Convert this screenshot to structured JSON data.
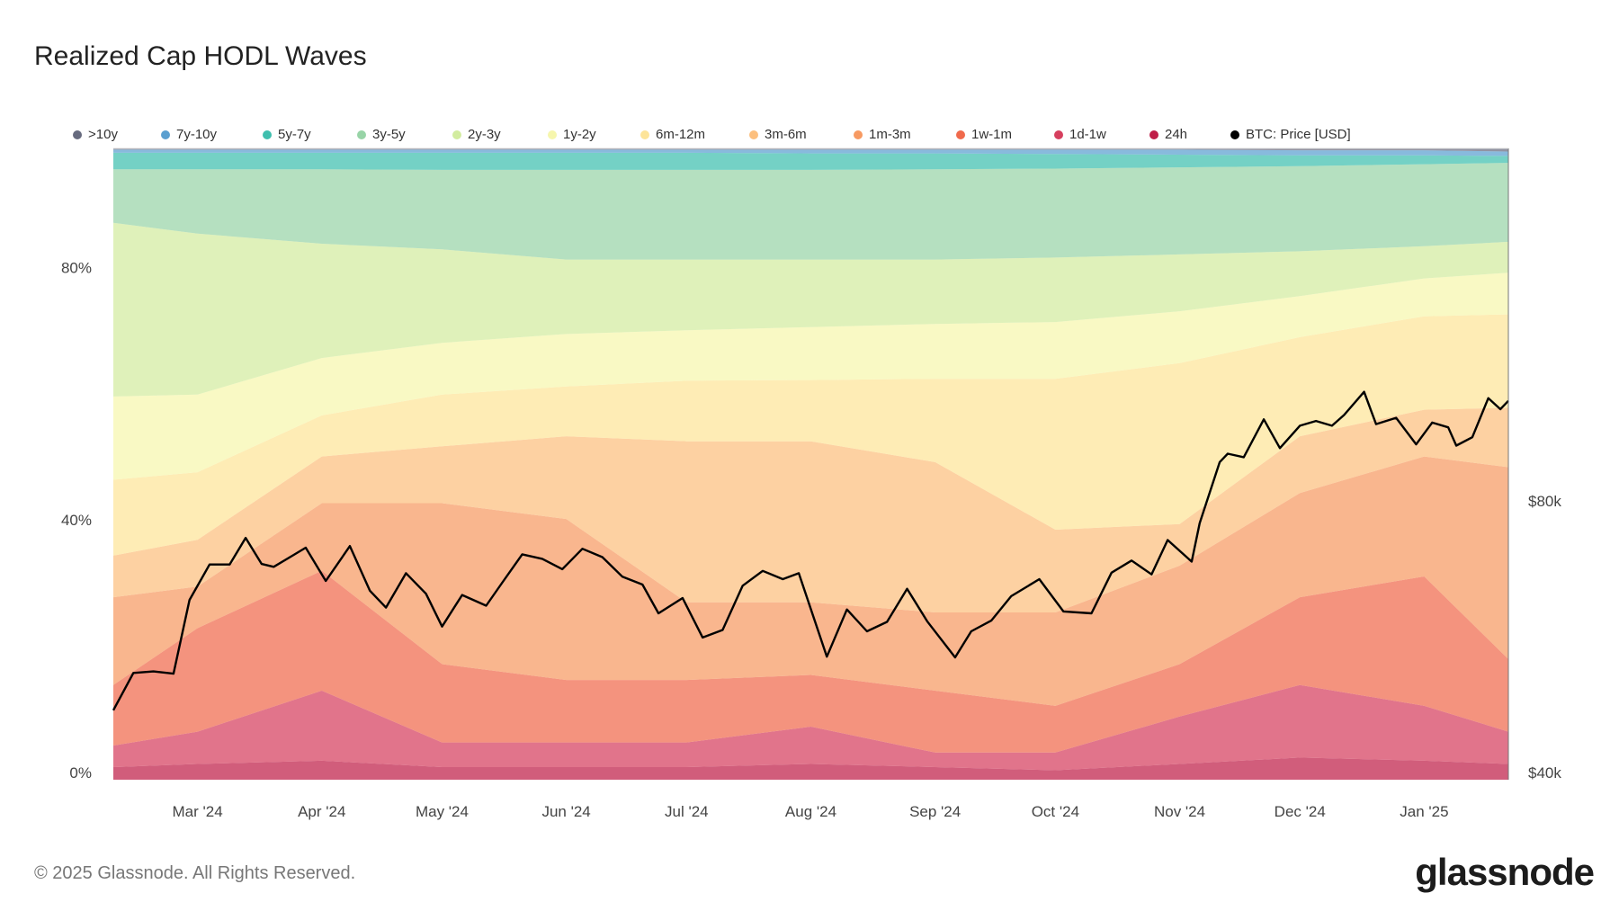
{
  "title": "Realized Cap HODL Waves",
  "footer": "© 2025 Glassnode. All Rights Reserved.",
  "logo": "glassnode",
  "chart_data": {
    "type": "area",
    "stacked": true,
    "title": "Realized Cap HODL Waves",
    "legend_position": "top",
    "grid": false,
    "x_tick_labels": [
      "Mar '24",
      "Apr '24",
      "May '24",
      "Jun '24",
      "Jul '24",
      "Aug '24",
      "Sep '24",
      "Oct '24",
      "Nov '24",
      "Dec '24",
      "Jan '25"
    ],
    "x_tick_dates": [
      "2024-03-01",
      "2024-04-01",
      "2024-05-01",
      "2024-06-01",
      "2024-07-01",
      "2024-08-01",
      "2024-09-01",
      "2024-10-01",
      "2024-11-01",
      "2024-12-01",
      "2025-01-01"
    ],
    "y_left": {
      "ticks": [
        0,
        40,
        80
      ],
      "tick_labels": [
        "0%",
        "40%",
        "80%"
      ],
      "range": [
        0,
        100
      ]
    },
    "y_right": {
      "scale": "log",
      "ticks": [
        40000,
        80000
      ],
      "tick_labels": [
        "$40k",
        "$80k"
      ]
    },
    "x_range": [
      "2024-02-09",
      "2025-01-22"
    ],
    "dates": [
      "2024-02-09",
      "2024-03-01",
      "2024-04-01",
      "2024-05-01",
      "2024-06-01",
      "2024-07-01",
      "2024-08-01",
      "2024-09-01",
      "2024-10-01",
      "2024-11-01",
      "2024-12-01",
      "2025-01-01",
      "2025-01-22"
    ],
    "series": [
      {
        "name": "24h",
        "color": "#bf1e48",
        "values": [
          2.0,
          2.5,
          3.0,
          2.0,
          2.0,
          2.0,
          2.5,
          2.0,
          1.5,
          2.5,
          3.5,
          3.0,
          2.5
        ]
      },
      {
        "name": "1d-1w",
        "color": "#d63f5e",
        "values": [
          3.4,
          5.1,
          11.1,
          3.9,
          3.9,
          3.9,
          5.9,
          2.3,
          2.8,
          7.5,
          11.5,
          8.7,
          5.1
        ]
      },
      {
        "name": "1w-1m",
        "color": "#f06a4c",
        "values": [
          9.6,
          16.4,
          19.0,
          12.4,
          9.9,
          9.9,
          8.2,
          9.8,
          7.4,
          8.3,
          13.9,
          20.5,
          11.5
        ]
      },
      {
        "name": "1m-3m",
        "color": "#f79a62",
        "values": [
          13.9,
          6.6,
          10.7,
          25.5,
          25.5,
          12.3,
          11.5,
          12.4,
          14.8,
          15.6,
          16.5,
          19.0,
          30.4
        ]
      },
      {
        "name": "3m-6m",
        "color": "#fcbf7e",
        "values": [
          6.6,
          7.4,
          7.4,
          9.0,
          13.1,
          25.5,
          25.5,
          23.8,
          13.1,
          6.6,
          9.0,
          7.4,
          9.4
        ]
      },
      {
        "name": "6m-12m",
        "color": "#fde499",
        "values": [
          12.0,
          10.7,
          6.5,
          8.2,
          7.9,
          9.6,
          9.7,
          13.2,
          23.9,
          25.5,
          15.7,
          14.8,
          14.8
        ]
      },
      {
        "name": "1y-2y",
        "color": "#f6f6ad",
        "values": [
          13.2,
          12.3,
          9.1,
          8.2,
          8.3,
          8.0,
          8.4,
          8.7,
          9.0,
          8.2,
          6.5,
          6.0,
          6.6
        ]
      },
      {
        "name": "2y-3y",
        "color": "#d2ec9f",
        "values": [
          27.5,
          25.5,
          18.1,
          14.8,
          11.8,
          11.2,
          10.7,
          10.2,
          10.2,
          9.0,
          7.1,
          5.1,
          4.9
        ]
      },
      {
        "name": "3y-5y",
        "color": "#98d4a7",
        "values": [
          8.5,
          10.2,
          11.8,
          12.6,
          14.2,
          14.2,
          14.2,
          14.3,
          14.1,
          13.8,
          13.5,
          13.0,
          12.5
        ]
      },
      {
        "name": "5y-7y",
        "color": "#3fbfae",
        "values": [
          2.6,
          2.6,
          2.6,
          2.7,
          2.7,
          2.7,
          2.6,
          2.5,
          2.3,
          2.0,
          1.7,
          1.4,
          1.1
        ]
      },
      {
        "name": "7y-10y",
        "color": "#5a9fd0",
        "values": [
          0.5,
          0.5,
          0.5,
          0.5,
          0.5,
          0.5,
          0.6,
          0.6,
          0.7,
          0.8,
          0.8,
          0.8,
          0.7
        ]
      },
      {
        "name": ">10y",
        "color": "#666a7e",
        "values": [
          0.2,
          0.2,
          0.2,
          0.2,
          0.2,
          0.2,
          0.2,
          0.2,
          0.2,
          0.2,
          0.3,
          0.3,
          0.5
        ]
      }
    ],
    "legend_order": [
      ">10y",
      "7y-10y",
      "5y-7y",
      "3y-5y",
      "2y-3y",
      "1y-2y",
      "6m-12m",
      "3m-6m",
      "1m-3m",
      "1w-1m",
      "1d-1w",
      "24h",
      "BTC: Price [USD]"
    ],
    "price": {
      "name": "BTC: Price [USD]",
      "color": "#000000",
      "axis": "right",
      "dates": [
        "2024-02-09",
        "2024-02-14",
        "2024-02-19",
        "2024-02-24",
        "2024-02-28",
        "2024-03-04",
        "2024-03-09",
        "2024-03-13",
        "2024-03-17",
        "2024-03-20",
        "2024-03-25",
        "2024-03-28",
        "2024-04-02",
        "2024-04-08",
        "2024-04-13",
        "2024-04-17",
        "2024-04-22",
        "2024-04-27",
        "2024-05-01",
        "2024-05-06",
        "2024-05-12",
        "2024-05-16",
        "2024-05-21",
        "2024-05-26",
        "2024-05-31",
        "2024-06-05",
        "2024-06-10",
        "2024-06-15",
        "2024-06-20",
        "2024-06-24",
        "2024-06-30",
        "2024-07-05",
        "2024-07-10",
        "2024-07-15",
        "2024-07-20",
        "2024-07-25",
        "2024-07-29",
        "2024-08-05",
        "2024-08-10",
        "2024-08-15",
        "2024-08-20",
        "2024-08-25",
        "2024-08-30",
        "2024-09-06",
        "2024-09-10",
        "2024-09-15",
        "2024-09-20",
        "2024-09-27",
        "2024-10-03",
        "2024-10-10",
        "2024-10-15",
        "2024-10-20",
        "2024-10-25",
        "2024-10-29",
        "2024-11-04",
        "2024-11-06",
        "2024-11-11",
        "2024-11-13",
        "2024-11-17",
        "2024-11-22",
        "2024-11-26",
        "2024-12-01",
        "2024-12-05",
        "2024-12-09",
        "2024-12-12",
        "2024-12-17",
        "2024-12-20",
        "2024-12-25",
        "2024-12-30",
        "2025-01-03",
        "2025-01-07",
        "2025-01-09",
        "2025-01-13",
        "2025-01-17",
        "2025-01-20",
        "2025-01-22"
      ],
      "values": [
        47100,
        51800,
        52000,
        51700,
        62400,
        68300,
        68300,
        73100,
        68400,
        67900,
        70000,
        71300,
        65500,
        71600,
        63900,
        61200,
        66800,
        63400,
        58300,
        63200,
        61500,
        65200,
        70100,
        69300,
        67500,
        71100,
        69600,
        66200,
        64900,
        60300,
        62700,
        56700,
        57800,
        64700,
        67200,
        65800,
        66800,
        54000,
        60900,
        57600,
        59000,
        64200,
        59100,
        53900,
        57600,
        59200,
        63000,
        65800,
        60600,
        60300,
        66900,
        69000,
        66600,
        72700,
        68800,
        75900,
        88700,
        90600,
        89800,
        98900,
        91900,
        97300,
        98500,
        97300,
        100000,
        106100,
        97700,
        99300,
        92800,
        98100,
        96900,
        92500,
        94500,
        104400,
        101500,
        103700
      ]
    }
  }
}
